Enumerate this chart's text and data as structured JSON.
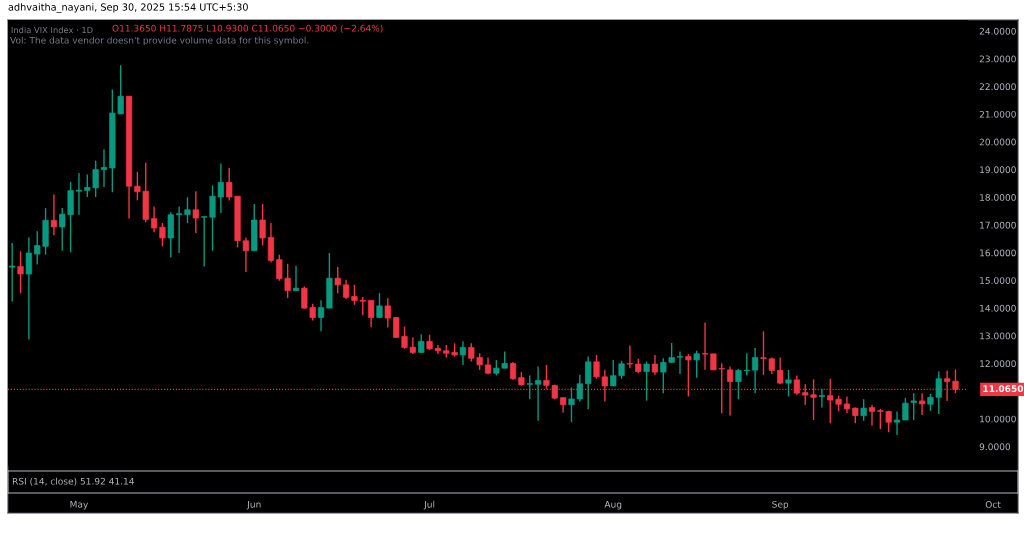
{
  "chart_data": {
    "type": "candlestick",
    "title": "India VIX Index · 1D",
    "subtitle": "adhvaitha_nayani, Sep 30, 2025 15:54 UTC+5:30",
    "annotations": [
      "O11.3650 H11.7875 L10.9300 C11.0650 −0.3000 (−2.64%)",
      "Vol: The data vendor doesn't provide volume data for this symbol.",
      "RSI (14, close) 51.92 41.14",
      "Oct"
    ],
    "categories": [
      null,
      null,
      null,
      null,
      null,
      null,
      null,
      null,
      "May",
      null,
      null,
      null,
      null,
      null,
      null,
      null,
      null,
      null,
      null,
      null,
      null,
      null,
      null,
      null,
      null,
      null,
      null,
      null,
      null,
      "Jun",
      null,
      null,
      null,
      null,
      null,
      null,
      null,
      null,
      null,
      null,
      null,
      null,
      null,
      null,
      null,
      null,
      null,
      null,
      null,
      null,
      "Jul",
      null,
      null,
      null,
      null,
      null,
      null,
      null,
      null,
      null,
      null,
      null,
      null,
      null,
      null,
      null,
      null,
      null,
      null,
      null,
      null,
      null,
      "Aug",
      null,
      null,
      null,
      null,
      null,
      null,
      null,
      null,
      null,
      null,
      null,
      null,
      null,
      null,
      null,
      null,
      null,
      null,
      null,
      "Sep",
      null,
      null,
      null,
      null,
      null,
      null,
      null,
      null,
      null,
      null,
      null,
      null,
      null,
      null,
      null,
      null,
      null,
      null,
      null,
      null,
      null
    ],
    "ohlc": [
      [
        15.48,
        16.35,
        14.24,
        15.52
      ],
      [
        15.5,
        16.05,
        14.54,
        15.23
      ],
      [
        15.23,
        16.55,
        12.87,
        15.99
      ],
      [
        15.95,
        16.77,
        15.57,
        16.26
      ],
      [
        16.23,
        17.61,
        15.93,
        17.17
      ],
      [
        17.17,
        18.1,
        16.63,
        16.93
      ],
      [
        16.93,
        17.61,
        16.07,
        17.39
      ],
      [
        17.37,
        18.55,
        16.01,
        18.24
      ],
      [
        18.22,
        18.88,
        17.37,
        18.26
      ],
      [
        18.25,
        18.82,
        18.01,
        18.36
      ],
      [
        18.34,
        19.32,
        18.01,
        19.0
      ],
      [
        19.0,
        19.73,
        18.37,
        19.08
      ],
      [
        19.06,
        21.89,
        18.18,
        21.04
      ],
      [
        21.01,
        22.77,
        21.01,
        21.65
      ],
      [
        21.65,
        21.65,
        17.23,
        18.4
      ],
      [
        18.4,
        18.92,
        17.89,
        18.2
      ],
      [
        18.22,
        19.25,
        17.1,
        17.2
      ],
      [
        17.23,
        17.67,
        16.74,
        16.89
      ],
      [
        16.92,
        17.07,
        16.23,
        16.53
      ],
      [
        16.53,
        17.46,
        15.83,
        17.37
      ],
      [
        17.37,
        17.67,
        15.99,
        17.41
      ],
      [
        17.37,
        18.0,
        17.07,
        17.55
      ],
      [
        17.55,
        18.22,
        16.71,
        17.25
      ],
      [
        17.28,
        17.31,
        15.5,
        17.3
      ],
      [
        17.28,
        18.43,
        16.07,
        18.04
      ],
      [
        18.01,
        19.22,
        17.43,
        18.54
      ],
      [
        18.54,
        19.06,
        17.88,
        18.01
      ],
      [
        18.04,
        18.04,
        16.19,
        16.43
      ],
      [
        16.43,
        16.55,
        15.3,
        16.07
      ],
      [
        16.07,
        17.76,
        16.07,
        17.18
      ],
      [
        17.18,
        17.76,
        16.26,
        16.53
      ],
      [
        16.55,
        17.07,
        15.65,
        15.72
      ],
      [
        15.75,
        15.93,
        14.99,
        15.06
      ],
      [
        15.08,
        15.6,
        14.36,
        14.63
      ],
      [
        14.63,
        15.53,
        14.63,
        14.72
      ],
      [
        14.72,
        14.78,
        13.98,
        14.0
      ],
      [
        14.02,
        14.16,
        13.55,
        13.66
      ],
      [
        13.66,
        14.28,
        13.16,
        14.02
      ],
      [
        14.0,
        15.99,
        14.0,
        15.08
      ],
      [
        15.08,
        15.48,
        14.54,
        14.84
      ],
      [
        14.84,
        15.02,
        14.33,
        14.39
      ],
      [
        14.42,
        14.84,
        14.12,
        14.27
      ],
      [
        14.28,
        14.4,
        13.74,
        14.25
      ],
      [
        14.28,
        14.28,
        13.31,
        13.66
      ],
      [
        13.66,
        14.54,
        13.66,
        14.08
      ],
      [
        14.08,
        14.36,
        13.3,
        13.64
      ],
      [
        13.66,
        13.66,
        12.94,
        12.94
      ],
      [
        12.98,
        13.34,
        12.53,
        12.58
      ],
      [
        12.59,
        12.94,
        12.34,
        12.4
      ],
      [
        12.4,
        13.06,
        12.4,
        12.8
      ],
      [
        12.8,
        13.04,
        12.49,
        12.53
      ],
      [
        12.55,
        12.67,
        12.34,
        12.46
      ],
      [
        12.46,
        12.67,
        12.22,
        12.37
      ],
      [
        12.4,
        12.73,
        12.25,
        12.31
      ],
      [
        12.31,
        12.8,
        11.95,
        12.58
      ],
      [
        12.58,
        12.73,
        12.07,
        12.19
      ],
      [
        12.22,
        12.37,
        11.77,
        11.95
      ],
      [
        11.95,
        12.22,
        11.61,
        11.65
      ],
      [
        11.65,
        12.13,
        11.57,
        11.83
      ],
      [
        11.83,
        12.43,
        11.83,
        12.0
      ],
      [
        12.0,
        12.05,
        11.41,
        11.45
      ],
      [
        11.49,
        11.69,
        11.2,
        11.23
      ],
      [
        11.25,
        11.57,
        10.72,
        11.26
      ],
      [
        11.25,
        11.89,
        9.93,
        11.39
      ],
      [
        11.39,
        11.95,
        11.09,
        11.21
      ],
      [
        11.21,
        11.23,
        10.71,
        10.75
      ],
      [
        10.77,
        10.77,
        10.23,
        10.51
      ],
      [
        10.51,
        11.13,
        9.88,
        10.72
      ],
      [
        10.72,
        11.59,
        10.63,
        11.27
      ],
      [
        11.27,
        12.25,
        10.35,
        12.06
      ],
      [
        12.06,
        12.31,
        11.45,
        11.52
      ],
      [
        11.52,
        11.77,
        10.63,
        11.19
      ],
      [
        11.19,
        12.13,
        11.19,
        11.56
      ],
      [
        11.56,
        12.1,
        11.45,
        11.99
      ],
      [
        12.0,
        12.65,
        11.83,
        11.98
      ],
      [
        11.98,
        12.17,
        11.65,
        11.71
      ],
      [
        11.71,
        12.07,
        10.66,
        11.98
      ],
      [
        11.98,
        12.31,
        11.59,
        11.69
      ],
      [
        11.69,
        12.19,
        10.93,
        12.04
      ],
      [
        12.04,
        12.74,
        12.04,
        12.22
      ],
      [
        12.23,
        12.43,
        11.62,
        12.25
      ],
      [
        12.25,
        12.34,
        10.81,
        12.13
      ],
      [
        12.13,
        12.46,
        11.49,
        12.35
      ],
      [
        12.35,
        13.48,
        11.77,
        12.34
      ],
      [
        12.35,
        12.35,
        11.77,
        11.77
      ],
      [
        11.82,
        12.01,
        10.2,
        11.8
      ],
      [
        11.77,
        11.89,
        10.12,
        11.35
      ],
      [
        11.35,
        11.8,
        10.71,
        11.75
      ],
      [
        11.74,
        12.37,
        11.57,
        11.76
      ],
      [
        11.76,
        12.56,
        10.93,
        12.22
      ],
      [
        12.21,
        13.16,
        11.59,
        12.18
      ],
      [
        12.17,
        12.22,
        11.62,
        11.75
      ],
      [
        11.75,
        12.22,
        11.25,
        11.29
      ],
      [
        11.29,
        11.77,
        10.81,
        11.41
      ],
      [
        11.41,
        11.57,
        10.87,
        10.93
      ],
      [
        10.95,
        11.25,
        10.51,
        10.86
      ],
      [
        10.87,
        11.43,
        9.96,
        10.78
      ],
      [
        10.81,
        11.09,
        10.41,
        10.84
      ],
      [
        10.84,
        11.45,
        9.84,
        10.68
      ],
      [
        10.71,
        10.84,
        10.27,
        10.53
      ],
      [
        10.54,
        10.81,
        10.21,
        10.36
      ],
      [
        10.39,
        10.41,
        9.84,
        10.12
      ],
      [
        10.12,
        10.71,
        9.93,
        10.39
      ],
      [
        10.41,
        10.51,
        9.76,
        10.27
      ],
      [
        10.3,
        10.36,
        9.63,
        10.27
      ],
      [
        10.27,
        10.29,
        9.52,
        9.88
      ],
      [
        9.88,
        10.27,
        9.42,
        9.96
      ],
      [
        9.96,
        10.75,
        9.96,
        10.57
      ],
      [
        10.59,
        10.93,
        9.96,
        10.65
      ],
      [
        10.65,
        10.93,
        10.14,
        10.54
      ],
      [
        10.53,
        10.9,
        10.29,
        10.78
      ],
      [
        10.78,
        11.71,
        10.18,
        11.45
      ],
      [
        11.45,
        11.75,
        10.65,
        11.35
      ],
      [
        11.365,
        11.7875,
        10.93,
        11.065
      ]
    ],
    "colors": [
      "#089981",
      "#f23645",
      "#089981",
      "#089981",
      "#089981",
      "#f23645",
      "#089981",
      "#089981",
      "#089981",
      "#089981",
      "#089981",
      "#089981",
      "#089981",
      "#089981",
      "#f23645",
      "#f23645",
      "#f23645",
      "#f23645",
      "#f23645",
      "#089981",
      "#089981",
      "#089981",
      "#f23645",
      "#089981",
      "#089981",
      "#089981",
      "#f23645",
      "#f23645",
      "#f23645",
      "#089981",
      "#f23645",
      "#f23645",
      "#f23645",
      "#f23645",
      "#089981",
      "#f23645",
      "#f23645",
      "#089981",
      "#089981",
      "#f23645",
      "#f23645",
      "#f23645",
      "#f23645",
      "#f23645",
      "#089981",
      "#f23645",
      "#f23645",
      "#f23645",
      "#f23645",
      "#089981",
      "#f23645",
      "#f23645",
      "#f23645",
      "#f23645",
      "#089981",
      "#f23645",
      "#f23645",
      "#f23645",
      "#089981",
      "#089981",
      "#f23645",
      "#f23645",
      "#089981",
      "#089981",
      "#f23645",
      "#f23645",
      "#f23645",
      "#089981",
      "#089981",
      "#089981",
      "#f23645",
      "#f23645",
      "#089981",
      "#089981",
      "#f23645",
      "#f23645",
      "#089981",
      "#f23645",
      "#089981",
      "#089981",
      "#089981",
      "#f23645",
      "#089981",
      "#f23645",
      "#f23645",
      "#f23645",
      "#f23645",
      "#089981",
      "#089981",
      "#089981",
      "#f23645",
      "#f23645",
      "#f23645",
      "#089981",
      "#f23645",
      "#f23645",
      "#f23645",
      "#089981",
      "#f23645",
      "#f23645",
      "#f23645",
      "#f23645",
      "#089981",
      "#f23645",
      "#f23645",
      "#f23645",
      "#089981",
      "#089981",
      "#089981",
      "#f23645",
      "#089981",
      "#089981",
      "#f23645",
      "#f23645"
    ],
    "ylim": [
      8.3,
      24.4
    ],
    "yticks": [
      {
        "value": 9,
        "label": "9.0000"
      },
      {
        "value": 10,
        "label": "10.0000"
      },
      {
        "value": 12,
        "label": "12.0000"
      },
      {
        "value": 13,
        "label": "13.0000"
      },
      {
        "value": 14,
        "label": "14.0000"
      },
      {
        "value": 15,
        "label": "15.0000"
      },
      {
        "value": 16,
        "label": "16.0000"
      },
      {
        "value": 17,
        "label": "17.0000"
      },
      {
        "value": 18,
        "label": "18.0000"
      },
      {
        "value": 19,
        "label": "19.0000"
      },
      {
        "value": 20,
        "label": "20.0000"
      },
      {
        "value": 21,
        "label": "21.0000"
      },
      {
        "value": 22,
        "label": "22.0000"
      },
      {
        "value": 23,
        "label": "23.0000"
      },
      {
        "value": 24,
        "label": "24.0000"
      }
    ],
    "ref_lines": [
      {
        "axis": "y",
        "value": 11.065,
        "label": "11.0650",
        "color": "#f23645",
        "line_style": "dotted"
      }
    ],
    "grid": false,
    "legend": false
  }
}
